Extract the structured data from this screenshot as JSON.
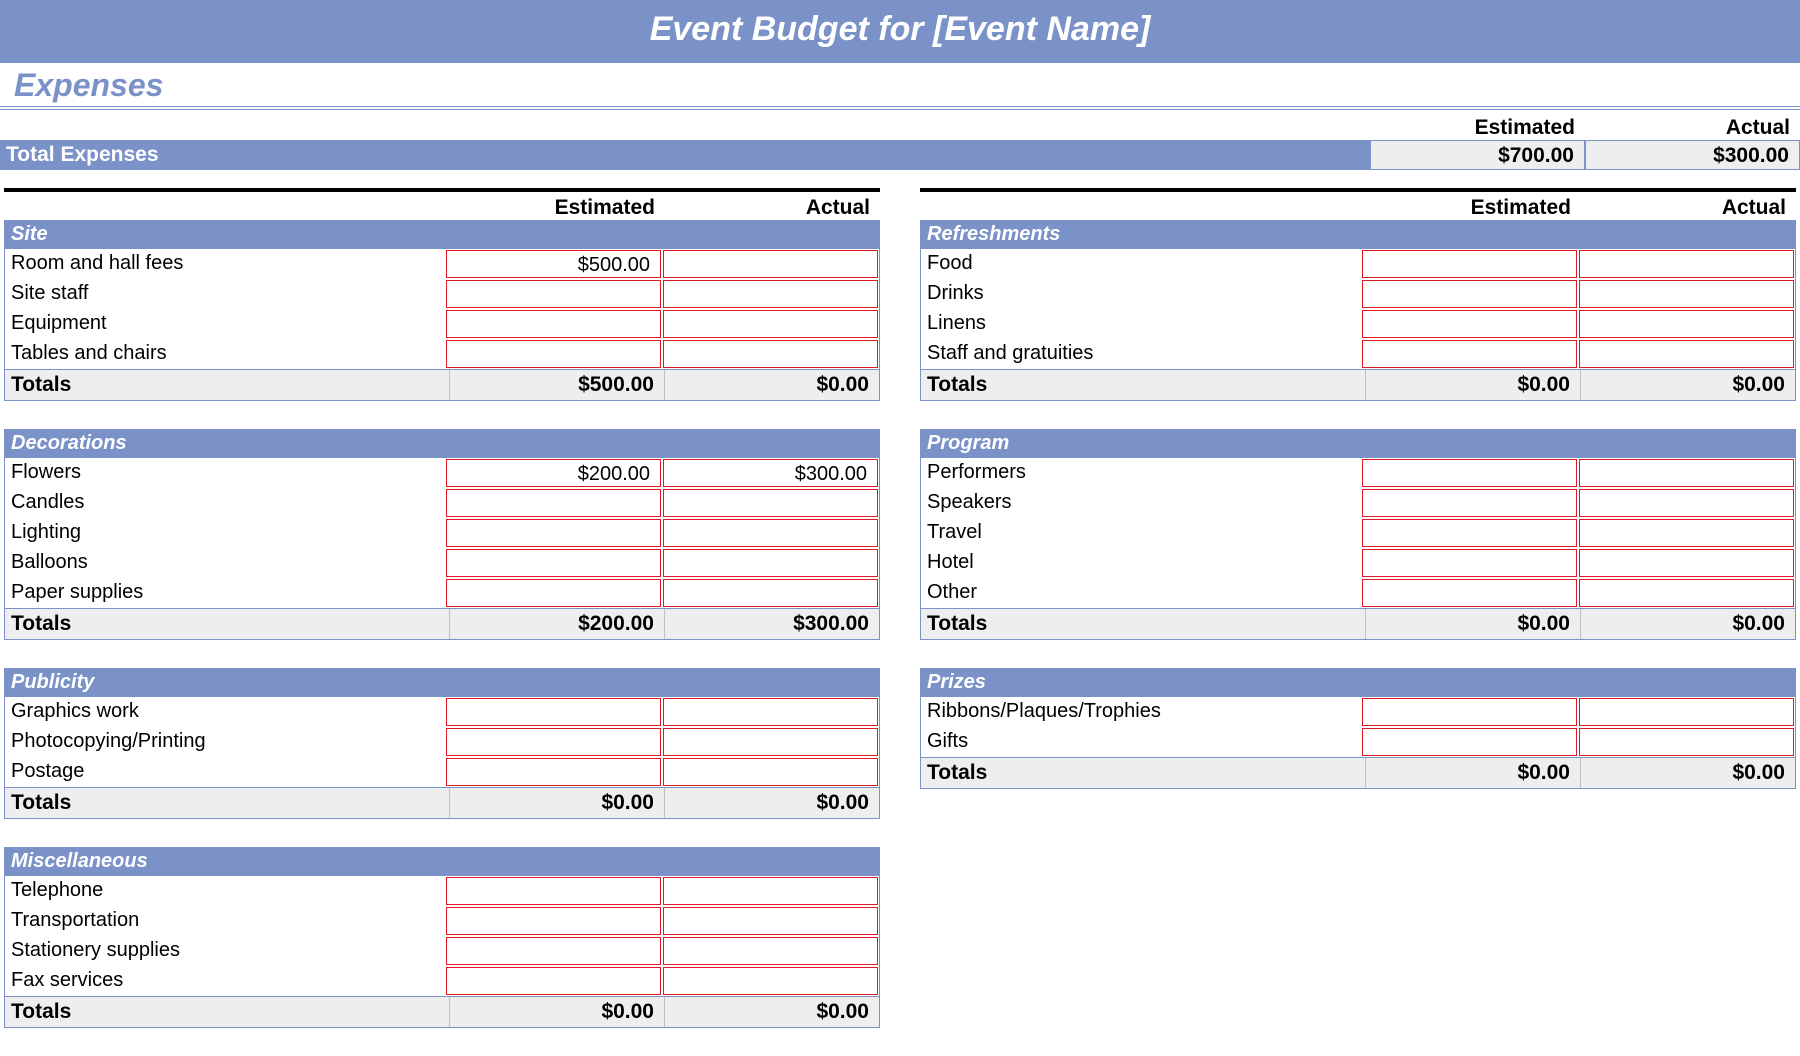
{
  "title": "Event Budget for [Event Name]",
  "section": "Expenses",
  "columns": {
    "estimated": "Estimated",
    "actual": "Actual"
  },
  "summary": {
    "label": "Total Expenses",
    "estimated": "$700.00",
    "actual": "$300.00"
  },
  "colors": {
    "header_bg": "#7b92c8",
    "cell_border": "#e01b24",
    "totals_bg": "#eeeeee",
    "top_rule": "#000000"
  },
  "left": [
    {
      "name": "Site",
      "rows": [
        {
          "label": "Room and hall fees",
          "estimated": "$500.00",
          "actual": ""
        },
        {
          "label": "Site staff",
          "estimated": "",
          "actual": ""
        },
        {
          "label": "Equipment",
          "estimated": "",
          "actual": ""
        },
        {
          "label": "Tables and chairs",
          "estimated": "",
          "actual": ""
        }
      ],
      "totals": {
        "label": "Totals",
        "estimated": "$500.00",
        "actual": "$0.00"
      }
    },
    {
      "name": "Decorations",
      "rows": [
        {
          "label": "Flowers",
          "estimated": "$200.00",
          "actual": "$300.00"
        },
        {
          "label": "Candles",
          "estimated": "",
          "actual": ""
        },
        {
          "label": "Lighting",
          "estimated": "",
          "actual": ""
        },
        {
          "label": "Balloons",
          "estimated": "",
          "actual": ""
        },
        {
          "label": "Paper supplies",
          "estimated": "",
          "actual": ""
        }
      ],
      "totals": {
        "label": "Totals",
        "estimated": "$200.00",
        "actual": "$300.00"
      }
    },
    {
      "name": "Publicity",
      "rows": [
        {
          "label": "Graphics work",
          "estimated": "",
          "actual": ""
        },
        {
          "label": "Photocopying/Printing",
          "estimated": "",
          "actual": ""
        },
        {
          "label": "Postage",
          "estimated": "",
          "actual": ""
        }
      ],
      "totals": {
        "label": "Totals",
        "estimated": "$0.00",
        "actual": "$0.00"
      }
    },
    {
      "name": "Miscellaneous",
      "rows": [
        {
          "label": "Telephone",
          "estimated": "",
          "actual": ""
        },
        {
          "label": "Transportation",
          "estimated": "",
          "actual": ""
        },
        {
          "label": "Stationery supplies",
          "estimated": "",
          "actual": ""
        },
        {
          "label": "Fax services",
          "estimated": "",
          "actual": ""
        }
      ],
      "totals": {
        "label": "Totals",
        "estimated": "$0.00",
        "actual": "$0.00"
      }
    }
  ],
  "right": [
    {
      "name": "Refreshments",
      "rows": [
        {
          "label": "Food",
          "estimated": "",
          "actual": ""
        },
        {
          "label": "Drinks",
          "estimated": "",
          "actual": ""
        },
        {
          "label": "Linens",
          "estimated": "",
          "actual": ""
        },
        {
          "label": "Staff and gratuities",
          "estimated": "",
          "actual": ""
        }
      ],
      "totals": {
        "label": "Totals",
        "estimated": "$0.00",
        "actual": "$0.00"
      }
    },
    {
      "name": "Program",
      "rows": [
        {
          "label": "Performers",
          "estimated": "",
          "actual": ""
        },
        {
          "label": "Speakers",
          "estimated": "",
          "actual": ""
        },
        {
          "label": "Travel",
          "estimated": "",
          "actual": ""
        },
        {
          "label": "Hotel",
          "estimated": "",
          "actual": ""
        },
        {
          "label": "Other",
          "estimated": "",
          "actual": ""
        }
      ],
      "totals": {
        "label": "Totals",
        "estimated": "$0.00",
        "actual": "$0.00"
      }
    },
    {
      "name": "Prizes",
      "rows": [
        {
          "label": "Ribbons/Plaques/Trophies",
          "estimated": "",
          "actual": ""
        },
        {
          "label": "Gifts",
          "estimated": "",
          "actual": ""
        }
      ],
      "totals": {
        "label": "Totals",
        "estimated": "$0.00",
        "actual": "$0.00"
      }
    }
  ]
}
